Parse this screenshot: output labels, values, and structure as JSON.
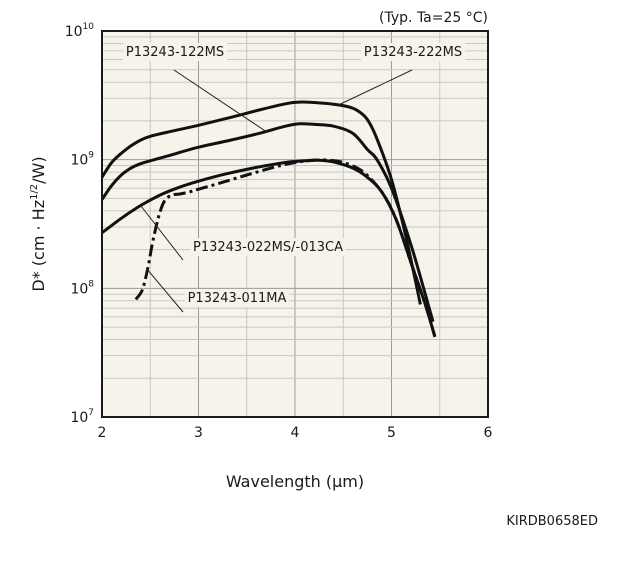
{
  "chart_data": {
    "type": "line",
    "condition": "(Typ. Ta=25 °C)",
    "xlabel": "Wavelength (µm)",
    "ylabel_main": "D* (cm · Hz",
    "ylabel_sup": "1/2",
    "ylabel_tail": "/W)",
    "xlim": [
      2,
      6
    ],
    "ylim": [
      10000000,
      10000000000
    ],
    "y_scale": "log",
    "grid": true,
    "x_ticks": [
      {
        "value": 2,
        "label": "2"
      },
      {
        "value": 3,
        "label": "3"
      },
      {
        "value": 4,
        "label": "4"
      },
      {
        "value": 5,
        "label": "5"
      },
      {
        "value": 6,
        "label": "6"
      }
    ],
    "y_ticks": [
      {
        "value": 10000000,
        "base": "10",
        "exp": "7"
      },
      {
        "value": 100000000,
        "base": "10",
        "exp": "8"
      },
      {
        "value": 1000000000,
        "base": "10",
        "exp": "9"
      },
      {
        "value": 10000000000,
        "base": "10",
        "exp": "10"
      }
    ],
    "series": [
      {
        "name": "P13243-222MS",
        "dash": "solid",
        "x": [
          2.0,
          2.1,
          2.2,
          2.3,
          2.4,
          2.5,
          2.7,
          3.0,
          3.3,
          3.6,
          3.9,
          4.05,
          4.2,
          4.4,
          4.55,
          4.65,
          4.75,
          4.85,
          5.0,
          5.15,
          5.3
        ],
        "y": [
          730000000,
          950000000,
          1120000000,
          1280000000,
          1420000000,
          1520000000,
          1650000000,
          1850000000,
          2100000000,
          2400000000,
          2720000000,
          2800000000,
          2780000000,
          2700000000,
          2580000000,
          2400000000,
          2050000000,
          1450000000,
          700000000,
          250000000,
          75000000
        ]
      },
      {
        "name": "P13243-122MS",
        "dash": "solid",
        "x": [
          2.0,
          2.1,
          2.2,
          2.3,
          2.4,
          2.5,
          2.7,
          3.0,
          3.3,
          3.6,
          3.9,
          4.05,
          4.2,
          4.4,
          4.6,
          4.75,
          4.85,
          5.0,
          5.2,
          5.35,
          5.43
        ],
        "y": [
          490000000,
          630000000,
          760000000,
          860000000,
          930000000,
          980000000,
          1080000000,
          1250000000,
          1400000000,
          1580000000,
          1820000000,
          1900000000,
          1880000000,
          1820000000,
          1600000000,
          1200000000,
          1000000000,
          600000000,
          220000000,
          90000000,
          55000000
        ]
      },
      {
        "name": "P13243-022MS/-013CA",
        "dash": "solid",
        "x": [
          2.0,
          2.2,
          2.4,
          2.6,
          2.8,
          3.0,
          3.3,
          3.6,
          3.9,
          4.1,
          4.25,
          4.4,
          4.6,
          4.75,
          4.9,
          5.05,
          5.2,
          5.35,
          5.45
        ],
        "y": [
          270000000,
          350000000,
          440000000,
          530000000,
          610000000,
          680000000,
          780000000,
          870000000,
          950000000,
          980000000,
          990000000,
          960000000,
          860000000,
          730000000,
          560000000,
          340000000,
          160000000,
          75000000,
          42000000
        ]
      },
      {
        "name": "P13243-011MA",
        "dash": "dashdot",
        "x": [
          2.35,
          2.42,
          2.48,
          2.52,
          2.56,
          2.6,
          2.65,
          2.72,
          2.8,
          2.9,
          3.0,
          3.2,
          3.5,
          3.8,
          4.0,
          4.2,
          4.35,
          4.5,
          4.7,
          4.9,
          5.05,
          5.2,
          5.35,
          5.45
        ],
        "y": [
          82000000,
          98000000,
          150000000,
          220000000,
          300000000,
          390000000,
          480000000,
          530000000,
          540000000,
          560000000,
          590000000,
          650000000,
          760000000,
          880000000,
          950000000,
          990000000,
          990000000,
          950000000,
          810000000,
          560000000,
          340000000,
          160000000,
          75000000,
          42000000
        ]
      }
    ],
    "annotations": [
      {
        "text": "P13243-122MS",
        "series": "P13243-122MS",
        "point_x": 3.7
      },
      {
        "text": "P13243-222MS",
        "series": "P13243-222MS",
        "point_x": 4.45
      },
      {
        "text": "P13243-022MS/-013CA",
        "series": "P13243-022MS/-013CA",
        "point_x": 2.4
      },
      {
        "text": "P13243-011MA",
        "series": "P13243-011MA",
        "point_x": 2.47
      }
    ],
    "code": "KIRDB0658ED"
  }
}
